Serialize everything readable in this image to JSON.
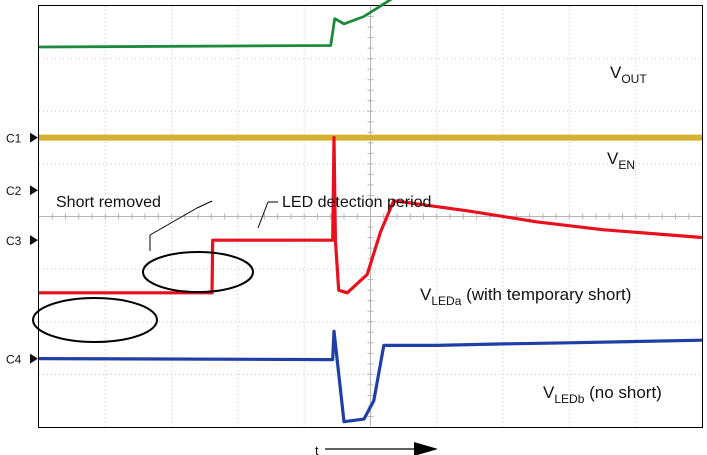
{
  "chart_data": {
    "type": "line",
    "title": "",
    "xlabel": "t",
    "ylabel": "",
    "grid": true,
    "divisions": {
      "x": 10,
      "y": 8
    },
    "series": [
      {
        "name": "VOUT",
        "label_main": "V",
        "label_sub": "OUT",
        "label_suffix": "",
        "color": "#1b8a3c",
        "x": [
          0,
          4.4,
          4.46,
          4.6,
          4.9,
          5.5,
          6.0,
          7.0,
          8.0,
          9.0,
          10
        ],
        "values": [
          7.22,
          7.25,
          7.76,
          7.66,
          7.8,
          8.28,
          8.28,
          8.26,
          8.25,
          8.22,
          8.18
        ]
      },
      {
        "name": "VEN",
        "label_main": "V",
        "label_sub": "EN",
        "label_suffix": "",
        "color": "#d4b12f",
        "x": [
          0,
          10
        ],
        "values": [
          5.5,
          5.5
        ]
      },
      {
        "name": "VLEDa",
        "label_main": "V",
        "label_sub": "LEDa",
        "label_suffix": " (with temporary short)",
        "color": "#e8101c",
        "x": [
          0,
          2.61,
          2.62,
          4.43,
          4.45,
          4.47,
          4.52,
          4.65,
          4.95,
          5.15,
          5.35,
          6.5,
          7.5,
          8.5,
          10
        ],
        "values": [
          2.55,
          2.55,
          3.55,
          3.55,
          5.5,
          3.55,
          2.6,
          2.55,
          2.9,
          3.7,
          4.3,
          4.1,
          3.9,
          3.75,
          3.6
        ]
      },
      {
        "name": "VLEDb",
        "label_main": "V",
        "label_sub": "LEDb",
        "label_suffix": " (no short)",
        "color": "#1f3fa6",
        "x": [
          0,
          4.43,
          4.45,
          4.6,
          4.9,
          5.05,
          5.2,
          6.0,
          7.0,
          8.0,
          10
        ],
        "values": [
          1.3,
          1.28,
          1.82,
          0.1,
          0.15,
          0.5,
          1.55,
          1.55,
          1.58,
          1.6,
          1.65
        ]
      }
    ],
    "channel_markers": [
      {
        "label": "C1",
        "level": 5.5
      },
      {
        "label": "C2",
        "level": 4.5
      },
      {
        "label": "C3",
        "level": 3.55
      },
      {
        "label": "C4",
        "level": 1.3
      }
    ],
    "annotations": {
      "short_removed": "Short removed",
      "led_detection": "LED detection period"
    },
    "time_arrow_label": "t"
  }
}
